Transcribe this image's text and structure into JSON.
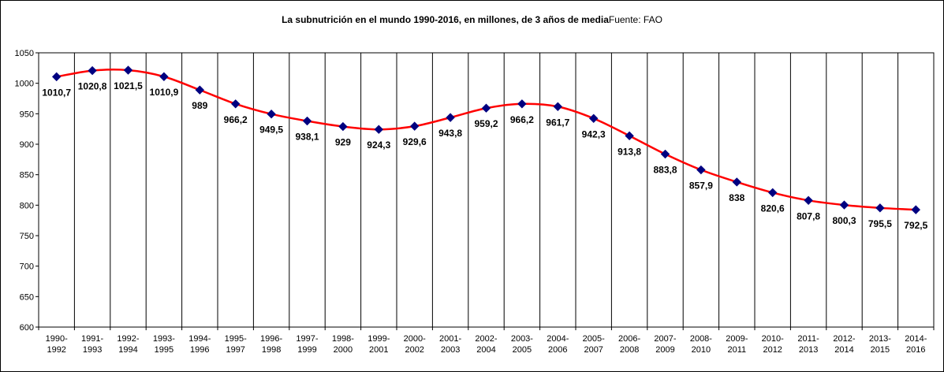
{
  "chart_data": {
    "type": "line",
    "title": "La subnutrición en el mundo 1990-2016, en millones, de 3 años de media",
    "subtitle": "Fuente: FAO",
    "xlabel": "",
    "ylabel": "",
    "ylim": [
      600,
      1050
    ],
    "ystep": 50,
    "yticks": [
      "600",
      "650",
      "700",
      "750",
      "800",
      "850",
      "900",
      "950",
      "1000",
      "1050"
    ],
    "grid": "vertical category separators",
    "legend": "none",
    "line_color": "#ff0000",
    "marker_color": "#000080",
    "categories": [
      [
        "1990-",
        "1992"
      ],
      [
        "1991-",
        "1993"
      ],
      [
        "1992-",
        "1994"
      ],
      [
        "1993-",
        "1995"
      ],
      [
        "1994-",
        "1996"
      ],
      [
        "1995-",
        "1997"
      ],
      [
        "1996-",
        "1998"
      ],
      [
        "1997-",
        "1999"
      ],
      [
        "1998-",
        "2000"
      ],
      [
        "1999-",
        "2001"
      ],
      [
        "2000-",
        "2002"
      ],
      [
        "2001-",
        "2003"
      ],
      [
        "2002-",
        "2004"
      ],
      [
        "2003-",
        "2005"
      ],
      [
        "2004-",
        "2006"
      ],
      [
        "2005-",
        "2007"
      ],
      [
        "2006-",
        "2008"
      ],
      [
        "2007-",
        "2009"
      ],
      [
        "2008-",
        "2010"
      ],
      [
        "2009-",
        "2011"
      ],
      [
        "2010-",
        "2012"
      ],
      [
        "2011-",
        "2013"
      ],
      [
        "2012-",
        "2014"
      ],
      [
        "2013-",
        "2015"
      ],
      [
        "2014-",
        "2016"
      ]
    ],
    "values": [
      1010.7,
      1020.8,
      1021.5,
      1010.9,
      989,
      966.2,
      949.5,
      938.1,
      929,
      924.3,
      929.6,
      943.8,
      959.2,
      966.2,
      961.7,
      942.3,
      913.8,
      883.8,
      857.9,
      838,
      820.6,
      807.8,
      800.3,
      795.5,
      792.5
    ],
    "data_labels": [
      "1010,7",
      "1020,8",
      "1021,5",
      "1010,9",
      "989",
      "966,2",
      "949,5",
      "938,1",
      "929",
      "924,3",
      "929,6",
      "943,8",
      "959,2",
      "966,2",
      "961,7",
      "942,3",
      "913,8",
      "883,8",
      "857,9",
      "838",
      "820,6",
      "807,8",
      "800,3",
      "795,5",
      "792,5"
    ]
  }
}
